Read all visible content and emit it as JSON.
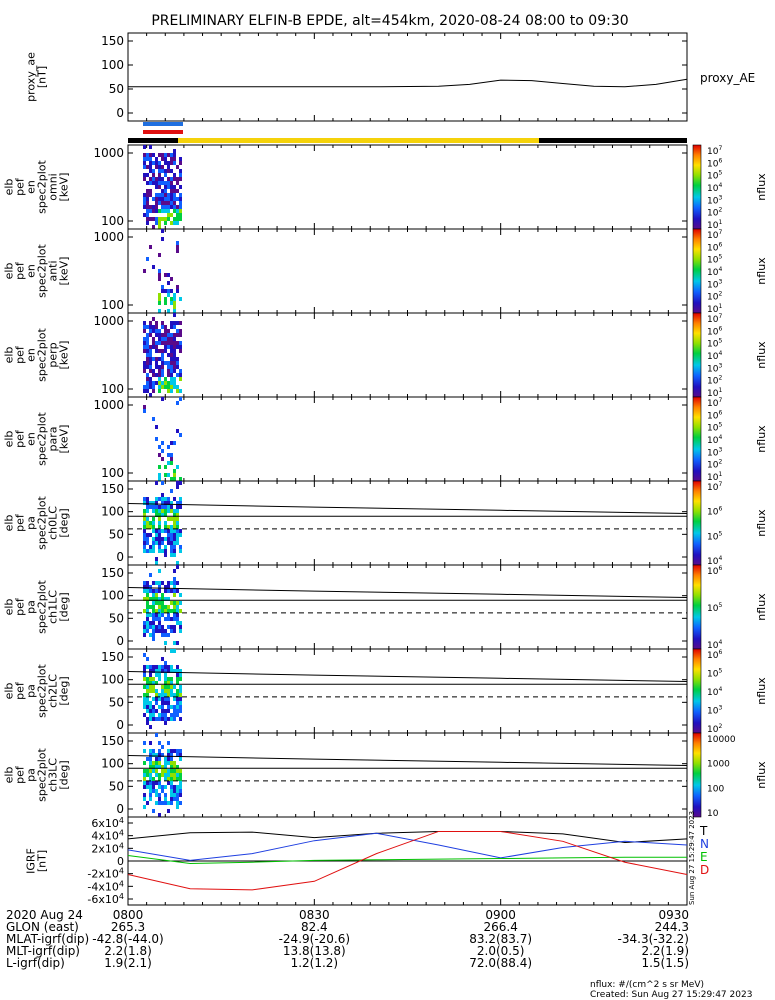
{
  "title": "PRELIMINARY ELFIN-B EPDE, alt=454km, 2020-08-24 08:00 to 09:30",
  "colors": {
    "blue": "#1f6fe0",
    "red": "#e01010",
    "yellow": "#f5d20a",
    "green": "#00c000"
  },
  "chart_data": [
    {
      "type": "line",
      "panel": "proxy_ae",
      "ylabel": "proxy_ae [nT]",
      "series_label": "proxy_AE",
      "yticks": [
        "150",
        "100",
        "50",
        "0"
      ],
      "ylim": [
        -10,
        160
      ],
      "x_minutes": [
        0,
        10,
        20,
        30,
        40,
        50,
        55,
        60,
        65,
        70,
        75,
        80,
        85,
        90
      ],
      "values": [
        50,
        50,
        50,
        50,
        50,
        51,
        55,
        64,
        63,
        57,
        51,
        50,
        55,
        66
      ]
    },
    {
      "type": "heatmap",
      "panel": "pef_en_spec2plot_omni",
      "ylabel": "elb pef en spec2plot omni [keV]",
      "yticks": [
        "1000",
        "100"
      ],
      "colorbar_ticks": [
        "10^7",
        "10^6",
        "10^5",
        "10^4",
        "10^3",
        "10^2",
        "10^1"
      ],
      "colorbar_label": "nflux"
    },
    {
      "type": "heatmap",
      "panel": "pef_en_spec2plot_anti",
      "ylabel": "elb pef en spec2plot anti [keV]",
      "yticks": [
        "1000",
        "100"
      ],
      "colorbar_ticks": [
        "10^7",
        "10^6",
        "10^5",
        "10^4",
        "10^3",
        "10^2",
        "10^1"
      ],
      "colorbar_label": "nflux"
    },
    {
      "type": "heatmap",
      "panel": "pef_en_spec2plot_perp",
      "ylabel": "elb pef en spec2plot perp [keV]",
      "yticks": [
        "1000",
        "100"
      ],
      "colorbar_ticks": [
        "10^7",
        "10^6",
        "10^5",
        "10^4",
        "10^3",
        "10^2",
        "10^1"
      ],
      "colorbar_label": "nflux"
    },
    {
      "type": "heatmap",
      "panel": "pef_en_spec2plot_para",
      "ylabel": "elb pef en spec2plot para [keV]",
      "yticks": [
        "1000",
        "100"
      ],
      "colorbar_ticks": [
        "10^7",
        "10^6",
        "10^5",
        "10^4",
        "10^3",
        "10^2",
        "10^1"
      ],
      "colorbar_label": "nflux"
    },
    {
      "type": "heatmap",
      "panel": "pef_pa_spec2plot_ch0LC",
      "ylabel": "elb pef pa spec2plot ch0LC [deg]",
      "yticks": [
        "150",
        "100",
        "50",
        "0"
      ],
      "colorbar_ticks": [
        "10^7",
        "10^6",
        "10^5",
        "10^4"
      ],
      "colorbar_label": "nflux"
    },
    {
      "type": "heatmap",
      "panel": "pef_pa_spec2plot_ch1LC",
      "ylabel": "elb pef pa spec2plot ch1LC [deg]",
      "yticks": [
        "150",
        "100",
        "50",
        "0"
      ],
      "colorbar_ticks": [
        "10^6",
        "10^5",
        "10^4"
      ],
      "colorbar_label": "nflux"
    },
    {
      "type": "heatmap",
      "panel": "pef_pa_spec2plot_ch2LC",
      "ylabel": "elb pef pa spec2plot ch2LC [deg]",
      "yticks": [
        "150",
        "100",
        "50",
        "0"
      ],
      "colorbar_ticks": [
        "10^6",
        "10^5",
        "10^4",
        "10^3",
        "10^2"
      ],
      "colorbar_label": "nflux"
    },
    {
      "type": "heatmap",
      "panel": "pef_pa_spec2plot_ch3LC",
      "ylabel": "elb pef pa spec2plot ch3LC [deg]",
      "yticks": [
        "150",
        "100",
        "50",
        "0"
      ],
      "colorbar_ticks": [
        "10000",
        "1000",
        "100",
        "10"
      ],
      "colorbar_label": "nflux"
    },
    {
      "type": "line",
      "panel": "igrf",
      "ylabel": "IGRF [nT]",
      "yticks": [
        "6x10^4",
        "4x10^4",
        "2x10^4",
        "0",
        "-2x10^4",
        "-4x10^4",
        "-6x10^4"
      ],
      "ylim": [
        -65000,
        65000
      ],
      "x_minutes": [
        0,
        10,
        20,
        30,
        40,
        50,
        60,
        70,
        80,
        90
      ],
      "series": [
        {
          "name": "T",
          "color": "#000000",
          "values": [
            36000,
            46000,
            47000,
            38000,
            45000,
            48000,
            48000,
            44000,
            30000,
            36000
          ]
        },
        {
          "name": "N",
          "color": "#1f3fe0",
          "values": [
            18000,
            1000,
            12000,
            33000,
            45000,
            26000,
            5000,
            22000,
            32000,
            26000
          ]
        },
        {
          "name": "E",
          "color": "#00c000",
          "values": [
            9000,
            -4000,
            -2000,
            1000,
            2000,
            3000,
            4000,
            5000,
            6000,
            6000
          ]
        },
        {
          "name": "D",
          "color": "#e01010",
          "values": [
            -22000,
            -45000,
            -47000,
            -33000,
            12000,
            48000,
            48000,
            32000,
            -2000,
            -22000
          ]
        }
      ]
    }
  ],
  "xaxis": {
    "ticks": [
      "0800",
      "0830",
      "0900",
      "0930"
    ],
    "rows": [
      {
        "label": "2020 Aug 24",
        "values": [
          "0800",
          "0830",
          "0900",
          "0930"
        ]
      },
      {
        "label": "GLON (east)",
        "values": [
          "265.3",
          "82.4",
          "266.4",
          "244.3"
        ]
      },
      {
        "label": "MLAT-igrf(dip)",
        "values": [
          "-42.8(-44.0)",
          "-24.9(-20.6)",
          "83.2(83.7)",
          "-34.3(-32.2)"
        ]
      },
      {
        "label": "MLT-igrf(dip)",
        "values": [
          "2.2(1.8)",
          "13.8(13.8)",
          "2.0(0.5)",
          "2.2(1.9)"
        ]
      },
      {
        "label": "L-igrf(dip)",
        "values": [
          "1.9(2.1)",
          "1.2(1.2)",
          "72.0(88.4)",
          "1.5(1.5)"
        ]
      }
    ]
  },
  "footer": {
    "units": "nflux: #/(cm^2 s sr MeV)",
    "created": "Created: Sun Aug 27 15:29:47 2023",
    "side_stamp": "Sun Aug 27 15:29:47 2023"
  }
}
